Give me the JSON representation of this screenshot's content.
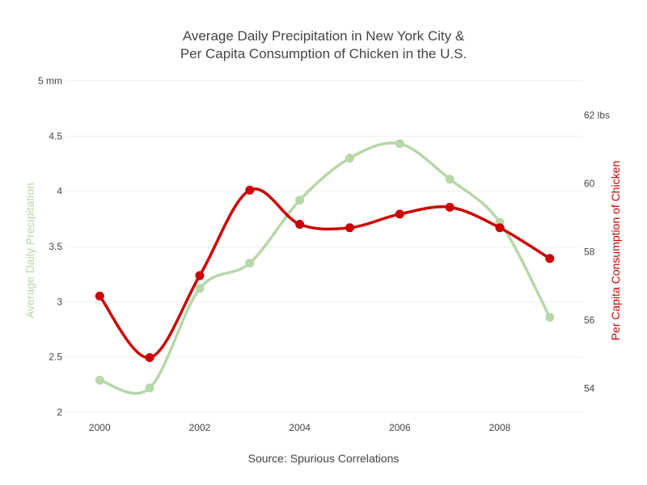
{
  "chart_data": {
    "type": "line",
    "title_lines": [
      "Average Daily Precipitation in New York City &",
      "Per Capita Consumption of Chicken in the U.S."
    ],
    "xlabel": "Source: Spurious Correlations",
    "x": [
      2000,
      2001,
      2002,
      2003,
      2004,
      2005,
      2006,
      2007,
      2008,
      2009
    ],
    "x_ticks": [
      "2000",
      "2002",
      "2004",
      "2006",
      "2008"
    ],
    "x_tick_values": [
      2000,
      2002,
      2004,
      2006,
      2008
    ],
    "xlim": [
      1999.3,
      2009.65
    ],
    "y_left": {
      "label": "Average Daily Precipitation",
      "range": [
        2,
        5
      ],
      "ticks": [
        "2",
        "2.5",
        "3",
        "3.5",
        "4",
        "4.5",
        "5 mm"
      ],
      "tick_values": [
        2,
        2.5,
        3,
        3.5,
        4,
        4.5,
        5
      ]
    },
    "y_right": {
      "label": "Per Capita Consumption of Chicken",
      "range": [
        53.3,
        63.0
      ],
      "ticks": [
        "54",
        "56",
        "58",
        "60",
        "62 lbs"
      ],
      "tick_values": [
        54,
        56,
        58,
        60,
        62
      ]
    },
    "series": [
      {
        "name": "Average Daily Precipitation",
        "axis": "left",
        "color": "#b6d7a8",
        "values": [
          2.29,
          2.22,
          3.12,
          3.35,
          3.92,
          4.3,
          4.43,
          4.11,
          3.72,
          2.86
        ]
      },
      {
        "name": "Per Capita Consumption of Chicken",
        "axis": "right",
        "color": "#cc0000",
        "values": [
          56.7,
          54.9,
          57.3,
          59.8,
          58.8,
          58.7,
          59.1,
          59.3,
          58.7,
          57.8
        ]
      }
    ],
    "grid": true,
    "legend": "none"
  }
}
